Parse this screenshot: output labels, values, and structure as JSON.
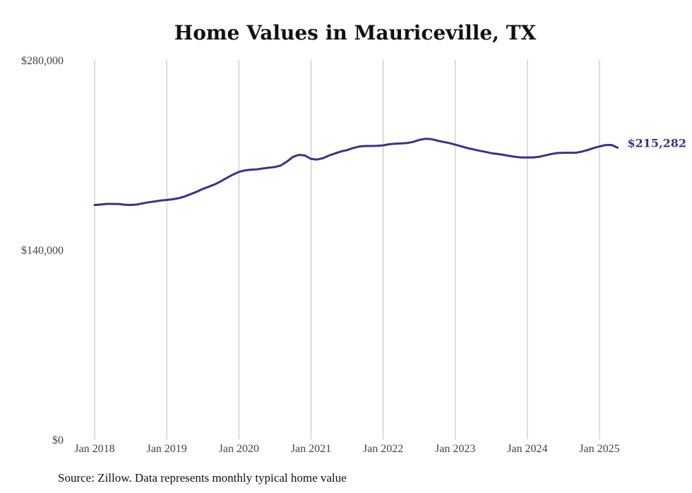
{
  "title": "Home Values in Mauriceville, TX",
  "source": "Source: Zillow. Data represents monthly typical home value",
  "colors": {
    "line": "#3b3289",
    "grid": "#bdbdbd",
    "text": "#444444"
  },
  "chart_data": {
    "type": "line",
    "title": "Home Values in Mauriceville, TX",
    "xlabel": "",
    "ylabel": "",
    "ylim": [
      0,
      280000
    ],
    "y_ticks": [
      {
        "value": 0,
        "label": "$0"
      },
      {
        "value": 140000,
        "label": "$140,000"
      },
      {
        "value": 280000,
        "label": "$280,000"
      }
    ],
    "x_ticks": [
      "Jan 2018",
      "Jan 2019",
      "Jan 2020",
      "Jan 2021",
      "Jan 2022",
      "Jan 2023",
      "Jan 2024",
      "Jan 2025"
    ],
    "grid": "vertical",
    "end_label": "$215,282",
    "series": [
      {
        "x": [
          "2018-01",
          "2018-02",
          "2018-03",
          "2018-04",
          "2018-05",
          "2018-06",
          "2018-07",
          "2018-08",
          "2018-09",
          "2018-10",
          "2018-11",
          "2018-12",
          "2019-01",
          "2019-02",
          "2019-03",
          "2019-04",
          "2019-05",
          "2019-06",
          "2019-07",
          "2019-08",
          "2019-09",
          "2019-10",
          "2019-11",
          "2019-12",
          "2020-01",
          "2020-02",
          "2020-03",
          "2020-04",
          "2020-05",
          "2020-06",
          "2020-07",
          "2020-08",
          "2020-09",
          "2020-10",
          "2020-11",
          "2020-12",
          "2021-01",
          "2021-02",
          "2021-03",
          "2021-04",
          "2021-05",
          "2021-06",
          "2021-07",
          "2021-08",
          "2021-09",
          "2021-10",
          "2021-11",
          "2021-12",
          "2022-01",
          "2022-02",
          "2022-03",
          "2022-04",
          "2022-05",
          "2022-06",
          "2022-07",
          "2022-08",
          "2022-09",
          "2022-10",
          "2022-11",
          "2022-12",
          "2023-01",
          "2023-02",
          "2023-03",
          "2023-04",
          "2023-05",
          "2023-06",
          "2023-07",
          "2023-08",
          "2023-09",
          "2023-10",
          "2023-11",
          "2023-12",
          "2024-01",
          "2024-02",
          "2024-03",
          "2024-04",
          "2024-05",
          "2024-06",
          "2024-07",
          "2024-08",
          "2024-09",
          "2024-10",
          "2024-11",
          "2024-12",
          "2025-01",
          "2025-02",
          "2025-03",
          "2025-04"
        ],
        "values": [
          173000,
          173300,
          173800,
          173800,
          173700,
          173200,
          173000,
          173300,
          174200,
          175000,
          175600,
          176300,
          176700,
          177200,
          178000,
          179300,
          181000,
          182800,
          184800,
          186500,
          188200,
          190500,
          193000,
          195400,
          197400,
          198500,
          199000,
          199300,
          199900,
          200500,
          201000,
          202200,
          205000,
          208500,
          210000,
          209500,
          207000,
          206500,
          207500,
          209500,
          211000,
          212500,
          213500,
          215000,
          216100,
          216500,
          216500,
          216600,
          217000,
          217800,
          218200,
          218400,
          218700,
          219500,
          221000,
          221800,
          221600,
          220500,
          219500,
          218700,
          217500,
          216300,
          215000,
          214000,
          213000,
          212200,
          211200,
          210600,
          210000,
          209200,
          208500,
          208100,
          208000,
          208000,
          208600,
          209600,
          210600,
          211300,
          211500,
          211500,
          211500,
          212300,
          213500,
          215000,
          216200,
          217200,
          217300,
          215282
        ]
      }
    ]
  }
}
